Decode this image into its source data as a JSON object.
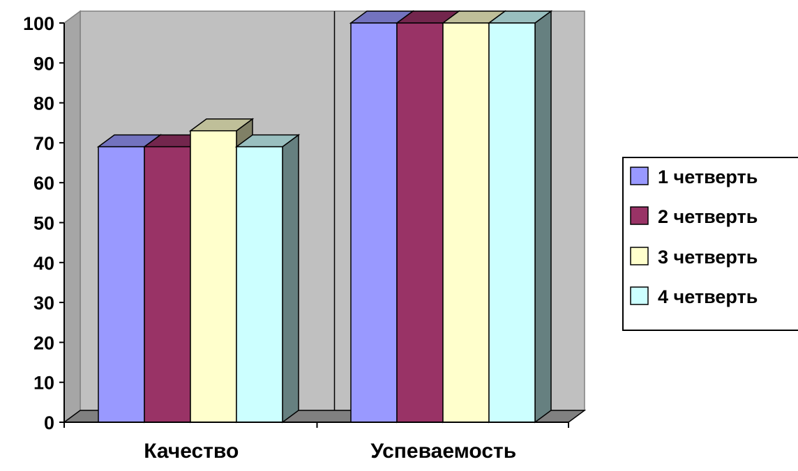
{
  "chart_data": {
    "type": "bar",
    "style": "3d-clustered-column",
    "title": "",
    "xlabel": "",
    "ylabel": "",
    "ylim": [
      0,
      100
    ],
    "yticks": [
      "0",
      "10",
      "20",
      "30",
      "40",
      "50",
      "60",
      "70",
      "80",
      "90",
      "100"
    ],
    "categories": [
      "Качество",
      "Успеваемость"
    ],
    "series": [
      {
        "name": "1 четверть",
        "values": [
          69,
          100
        ],
        "color": "#9999ff"
      },
      {
        "name": "2 четверть",
        "values": [
          69,
          100
        ],
        "color": "#993366"
      },
      {
        "name": "3 четверть",
        "values": [
          73,
          100
        ],
        "color": "#ffffcc"
      },
      {
        "name": "4 четверть",
        "values": [
          69,
          100
        ],
        "color": "#ccffff"
      }
    ],
    "grid": false,
    "legend": "right",
    "wall_color": "#c0c0c0",
    "floor_color": "#808080"
  }
}
